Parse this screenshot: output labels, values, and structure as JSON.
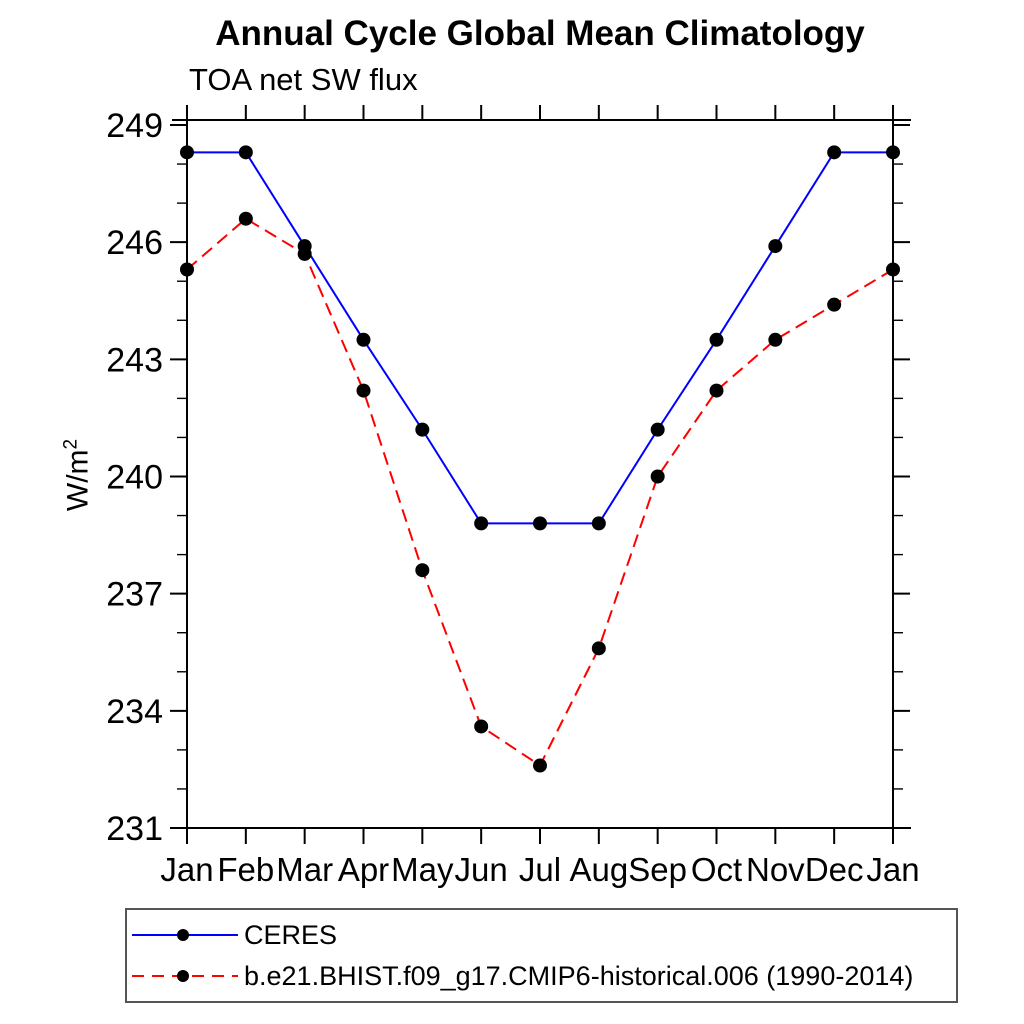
{
  "title": "Annual Cycle Global Mean Climatology",
  "subtitle": "TOA net SW flux",
  "ylabel_parts": {
    "base": "W/m",
    "sup": "2"
  },
  "chart_data": {
    "type": "line",
    "title": "Annual Cycle Global Mean Climatology",
    "subtitle": "TOA net SW flux",
    "xlabel": "",
    "ylabel": "W/m²",
    "categories": [
      "Jan",
      "Feb",
      "Mar",
      "Apr",
      "May",
      "Jun",
      "Jul",
      "Aug",
      "Sep",
      "Oct",
      "Nov",
      "Dec",
      "Jan"
    ],
    "ylim": [
      231,
      249
    ],
    "ytick_major": [
      231,
      234,
      237,
      240,
      243,
      246,
      249
    ],
    "ytick_minor_step": 1,
    "grid": false,
    "legend_position": "bottom-left",
    "axis_color": "#000000",
    "series": [
      {
        "name": "CERES",
        "color": "#0000ff",
        "line_style": "solid",
        "marker": "filled-circle",
        "marker_color": "#000000",
        "values": [
          248.3,
          248.3,
          245.9,
          243.5,
          241.2,
          238.8,
          238.8,
          238.8,
          241.2,
          243.5,
          245.9,
          248.3,
          248.3
        ]
      },
      {
        "name": "b.e21.BHIST.f09_g17.CMIP6-historical.006 (1990-2014)",
        "color": "#ff0000",
        "line_style": "dashed",
        "marker": "filled-circle",
        "marker_color": "#000000",
        "values": [
          245.3,
          246.6,
          245.7,
          242.2,
          237.6,
          233.6,
          232.6,
          235.6,
          240.0,
          242.2,
          243.5,
          244.4,
          245.3
        ]
      }
    ]
  }
}
